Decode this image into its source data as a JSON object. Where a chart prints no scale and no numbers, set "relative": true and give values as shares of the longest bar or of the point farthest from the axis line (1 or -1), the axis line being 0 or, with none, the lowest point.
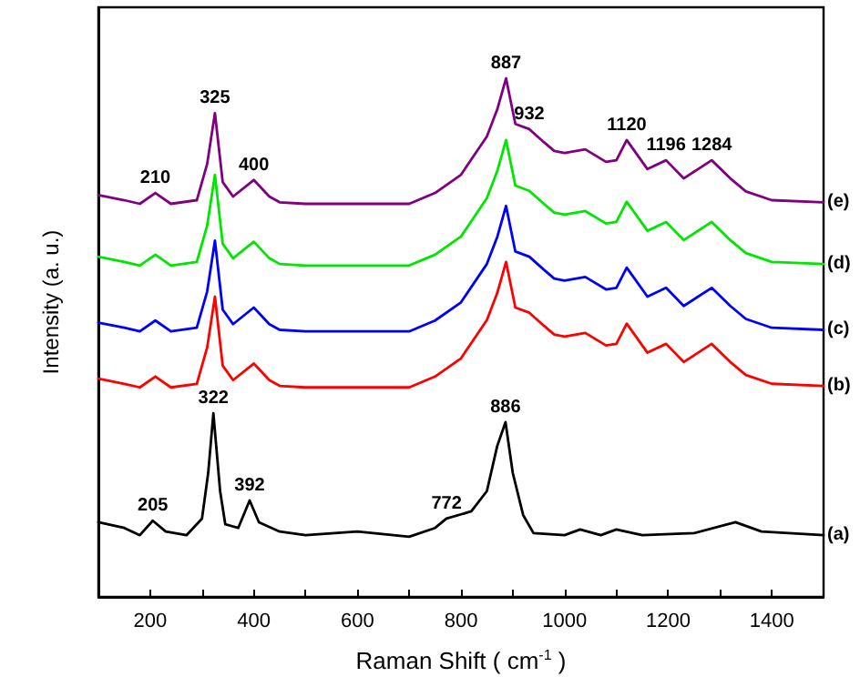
{
  "chart_data": {
    "type": "line",
    "relative": true,
    "xlabel": "Raman Shift ( cm$^{-1}$ )",
    "ylabel": "Intensity (a. u.)",
    "xlim": [
      100,
      1500
    ],
    "xticks": [
      200,
      {
        "value": 300,
        "label": null
      },
      400,
      {
        "value": 500,
        "label": null
      },
      600,
      {
        "value": 700,
        "label": null
      },
      800,
      {
        "value": 900,
        "label": null
      },
      1000,
      {
        "value": 1100,
        "label": null
      },
      1200,
      {
        "value": 1300,
        "label": null
      },
      1400
    ],
    "grid": false,
    "legend": false,
    "marker": "none",
    "line_style": "solid",
    "series": [
      {
        "name": "(e)",
        "color": "#800080",
        "x": [
          100,
          150,
          180,
          210,
          240,
          290,
          310,
          325,
          340,
          360,
          400,
          430,
          450,
          500,
          700,
          750,
          800,
          850,
          870,
          887,
          905,
          932,
          960,
          980,
          1000,
          1040,
          1080,
          1100,
          1120,
          1160,
          1196,
          1230,
          1284,
          1320,
          1350,
          1400,
          1500
        ],
        "values": [
          0.775,
          0.765,
          0.758,
          0.779,
          0.758,
          0.765,
          0.835,
          0.933,
          0.8,
          0.772,
          0.804,
          0.772,
          0.761,
          0.758,
          0.758,
          0.779,
          0.814,
          0.888,
          0.94,
          1.0,
          0.912,
          0.902,
          0.877,
          0.86,
          0.856,
          0.863,
          0.839,
          0.842,
          0.881,
          0.825,
          0.842,
          0.807,
          0.842,
          0.807,
          0.782,
          0.765,
          0.761
        ]
      },
      {
        "name": "(d)",
        "color": "#00e600",
        "x": [
          100,
          150,
          180,
          210,
          240,
          290,
          310,
          325,
          340,
          360,
          400,
          430,
          450,
          500,
          700,
          750,
          800,
          850,
          870,
          887,
          905,
          932,
          960,
          980,
          1000,
          1040,
          1080,
          1100,
          1120,
          1160,
          1196,
          1230,
          1284,
          1320,
          1350,
          1400,
          1500
        ],
        "values": [
          0.656,
          0.646,
          0.639,
          0.66,
          0.639,
          0.646,
          0.716,
          0.814,
          0.681,
          0.653,
          0.685,
          0.653,
          0.642,
          0.639,
          0.639,
          0.66,
          0.695,
          0.769,
          0.821,
          0.881,
          0.793,
          0.783,
          0.758,
          0.741,
          0.737,
          0.744,
          0.72,
          0.723,
          0.762,
          0.706,
          0.723,
          0.688,
          0.723,
          0.688,
          0.663,
          0.646,
          0.642
        ]
      },
      {
        "name": "(c)",
        "color": "#0000ff",
        "x": [
          100,
          150,
          180,
          210,
          240,
          290,
          310,
          325,
          340,
          360,
          400,
          430,
          450,
          500,
          700,
          750,
          800,
          850,
          870,
          887,
          905,
          932,
          960,
          980,
          1000,
          1040,
          1080,
          1100,
          1120,
          1160,
          1196,
          1230,
          1284,
          1320,
          1350,
          1400,
          1500
        ],
        "values": [
          0.529,
          0.519,
          0.512,
          0.533,
          0.512,
          0.519,
          0.589,
          0.687,
          0.554,
          0.526,
          0.558,
          0.526,
          0.515,
          0.512,
          0.512,
          0.533,
          0.568,
          0.642,
          0.694,
          0.754,
          0.666,
          0.656,
          0.631,
          0.614,
          0.61,
          0.617,
          0.593,
          0.596,
          0.635,
          0.579,
          0.596,
          0.561,
          0.596,
          0.561,
          0.536,
          0.519,
          0.515
        ]
      },
      {
        "name": "(b)",
        "color": "#ff0000",
        "x": [
          100,
          150,
          180,
          210,
          240,
          290,
          310,
          325,
          340,
          360,
          400,
          430,
          450,
          500,
          700,
          750,
          800,
          850,
          870,
          887,
          905,
          932,
          960,
          980,
          1000,
          1040,
          1080,
          1100,
          1120,
          1160,
          1196,
          1230,
          1284,
          1320,
          1350,
          1400,
          1500
        ],
        "values": [
          0.421,
          0.411,
          0.404,
          0.425,
          0.404,
          0.411,
          0.481,
          0.579,
          0.446,
          0.418,
          0.45,
          0.418,
          0.407,
          0.404,
          0.404,
          0.425,
          0.46,
          0.534,
          0.586,
          0.646,
          0.558,
          0.548,
          0.523,
          0.506,
          0.502,
          0.509,
          0.485,
          0.488,
          0.527,
          0.471,
          0.488,
          0.453,
          0.488,
          0.453,
          0.428,
          0.411,
          0.407
        ]
      },
      {
        "name": "(a)",
        "color": "#000000",
        "x": [
          100,
          150,
          180,
          205,
          230,
          270,
          300,
          312,
          322,
          335,
          345,
          370,
          392,
          410,
          450,
          500,
          600,
          700,
          750,
          772,
          820,
          850,
          870,
          886,
          900,
          920,
          940,
          1000,
          1030,
          1070,
          1100,
          1150,
          1250,
          1330,
          1380,
          1500
        ],
        "values": [
          0.144,
          0.133,
          0.119,
          0.147,
          0.126,
          0.119,
          0.151,
          0.239,
          0.354,
          0.204,
          0.14,
          0.133,
          0.186,
          0.144,
          0.126,
          0.119,
          0.126,
          0.116,
          0.133,
          0.151,
          0.165,
          0.204,
          0.291,
          0.337,
          0.239,
          0.158,
          0.123,
          0.119,
          0.13,
          0.119,
          0.13,
          0.119,
          0.123,
          0.144,
          0.126,
          0.119
        ]
      }
    ],
    "annotations": [
      {
        "text": "210",
        "x": 210,
        "y": 0.779
      },
      {
        "text": "325",
        "x": 325,
        "y": 0.933
      },
      {
        "text": "400",
        "x": 400,
        "y": 0.804
      },
      {
        "text": "887",
        "x": 887,
        "y": 1.0
      },
      {
        "text": "932",
        "x": 932,
        "y": 0.902
      },
      {
        "text": "1120",
        "x": 1120,
        "y": 0.881
      },
      {
        "text": "1196",
        "x": 1196,
        "y": 0.842
      },
      {
        "text": "1284",
        "x": 1284,
        "y": 0.842
      },
      {
        "text": "205",
        "x": 205,
        "y": 0.147
      },
      {
        "text": "322",
        "x": 322,
        "y": 0.354
      },
      {
        "text": "392",
        "x": 392,
        "y": 0.186
      },
      {
        "text": "772",
        "x": 772,
        "y": 0.151
      },
      {
        "text": "886",
        "x": 886,
        "y": 0.337
      }
    ]
  }
}
